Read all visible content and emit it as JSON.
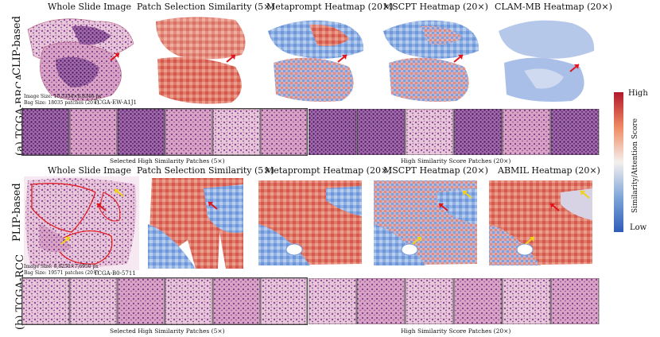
{
  "section_a": {
    "label": "(a) TCGA-BRCA",
    "model": "CLIP-based",
    "columns": [
      "Whole Slide Image",
      "Patch Selection Similarity (5×)",
      "Metaprompt Heatmap (20×)",
      "MSCPT Heatmap (20×)",
      "CLAM-MB Heatmap (20×)"
    ],
    "image_size": "Image Size: 10,5334×8,8346 px",
    "bag_size": "Bag Size: 18035 patches (20×)",
    "slide_id": "TCGA-EW-A1J1",
    "selected_caption": "Selected High Similarity Patches (5×)",
    "score_caption": "High Similarity Score Patches (20×)"
  },
  "section_b": {
    "label": "(b) TCGA-RCC",
    "model": "PLIP-based",
    "columns": [
      "Whole Slide Image",
      "Patch Selection Similarity (5×)",
      "Metaprompt Heatmap (20×)",
      "MSCPT Heatmap (20×)",
      "ABMIL Heatmap (20×)"
    ],
    "image_size": "Image Size: 8,8250×7,6950 px",
    "bag_size": "Bag Size: 19571 patches (20×)",
    "slide_id": "TCGA-B0-5711",
    "selected_caption": "Selected High Similarity Patches (5×)",
    "score_caption": "High Similarity Score Patches (20×)"
  },
  "colorbar": {
    "high": "High",
    "low": "Low",
    "title": "Similarity/Attention Score",
    "colors": [
      "#b2182b",
      "#ef8a62",
      "#f7f7f7",
      "#67a9cf",
      "#2e5cb8"
    ]
  }
}
